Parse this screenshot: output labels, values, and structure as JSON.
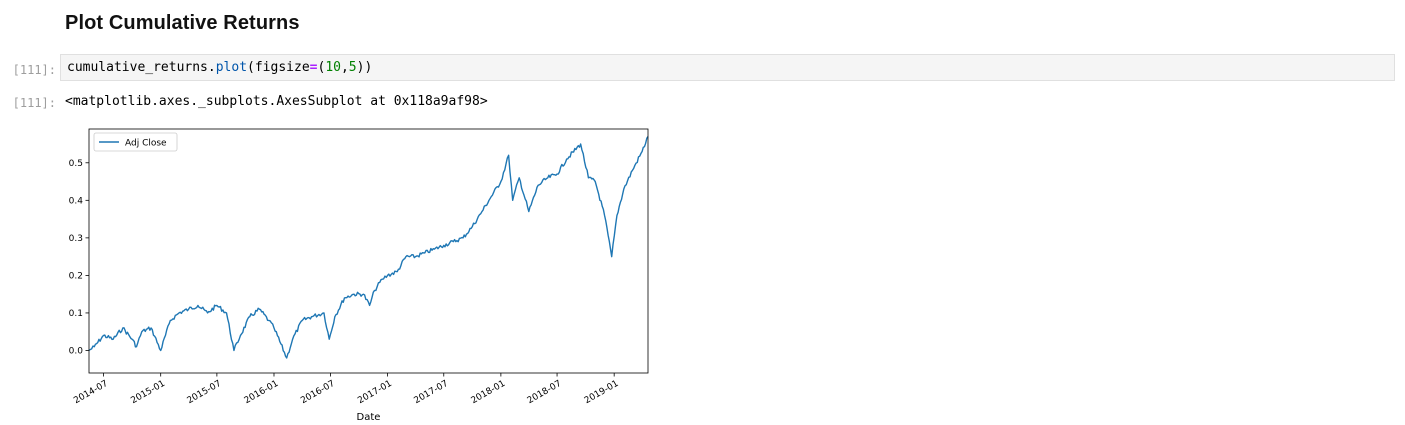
{
  "section": {
    "title": "Plot Cumulative Returns"
  },
  "input_cell": {
    "prompt": "[111]:",
    "code": {
      "obj": "cumulative_returns.",
      "method": "plot",
      "open": "(",
      "kw": "figsize",
      "eq": "=",
      "args_open": "(",
      "num1": "10",
      "comma": ",",
      "num2": "5",
      "close": "))"
    }
  },
  "output_cell": {
    "prompt": "[111]:",
    "text": "<matplotlib.axes._subplots.AxesSubplot at 0x118a9af98>"
  },
  "chart_data": {
    "type": "line",
    "xlabel": "Date",
    "ylabel": "",
    "xlim": [
      "2014-05-15",
      "2019-04-20"
    ],
    "ylim": [
      -0.06,
      0.59
    ],
    "yticks": [
      0.0,
      0.1,
      0.2,
      0.3,
      0.4,
      0.5
    ],
    "ytick_labels": [
      "0.0",
      "0.1",
      "0.2",
      "0.3",
      "0.4",
      "0.5"
    ],
    "xticks": [
      "2014-07-01",
      "2015-01-01",
      "2015-07-01",
      "2016-01-01",
      "2016-07-01",
      "2017-01-01",
      "2017-07-01",
      "2018-01-01",
      "2018-07-01",
      "2019-01-01"
    ],
    "xtick_labels": [
      "2014-07",
      "2015-01",
      "2015-07",
      "2016-01",
      "2016-07",
      "2017-01",
      "2017-07",
      "2018-01",
      "2018-07",
      "2019-01"
    ],
    "grid": false,
    "legend": "top-left",
    "color": "#1f77b4",
    "series": [
      {
        "name": "Adj Close",
        "points": [
          [
            "2014-05-15",
            0.0
          ],
          [
            "2014-06-01",
            0.01
          ],
          [
            "2014-07-01",
            0.04
          ],
          [
            "2014-08-01",
            0.03
          ],
          [
            "2014-09-01",
            0.06
          ],
          [
            "2014-10-01",
            0.03
          ],
          [
            "2014-10-15",
            0.01
          ],
          [
            "2014-11-01",
            0.05
          ],
          [
            "2014-12-01",
            0.06
          ],
          [
            "2015-01-01",
            0.0
          ],
          [
            "2015-02-01",
            0.08
          ],
          [
            "2015-03-01",
            0.1
          ],
          [
            "2015-04-01",
            0.11
          ],
          [
            "2015-05-01",
            0.12
          ],
          [
            "2015-06-01",
            0.1
          ],
          [
            "2015-07-01",
            0.12
          ],
          [
            "2015-08-01",
            0.1
          ],
          [
            "2015-08-25",
            0.0
          ],
          [
            "2015-09-15",
            0.04
          ],
          [
            "2015-10-15",
            0.09
          ],
          [
            "2015-11-15",
            0.11
          ],
          [
            "2015-12-15",
            0.08
          ],
          [
            "2016-01-01",
            0.06
          ],
          [
            "2016-02-11",
            -0.02
          ],
          [
            "2016-03-01",
            0.03
          ],
          [
            "2016-04-01",
            0.08
          ],
          [
            "2016-05-01",
            0.09
          ],
          [
            "2016-06-10",
            0.1
          ],
          [
            "2016-06-27",
            0.03
          ],
          [
            "2016-07-15",
            0.09
          ],
          [
            "2016-08-15",
            0.14
          ],
          [
            "2016-09-15",
            0.15
          ],
          [
            "2016-10-15",
            0.15
          ],
          [
            "2016-11-04",
            0.12
          ],
          [
            "2016-11-20",
            0.16
          ],
          [
            "2016-12-15",
            0.19
          ],
          [
            "2017-01-01",
            0.2
          ],
          [
            "2017-02-01",
            0.21
          ],
          [
            "2017-03-01",
            0.25
          ],
          [
            "2017-04-01",
            0.25
          ],
          [
            "2017-05-01",
            0.26
          ],
          [
            "2017-06-01",
            0.27
          ],
          [
            "2017-07-01",
            0.28
          ],
          [
            "2017-08-01",
            0.29
          ],
          [
            "2017-09-01",
            0.3
          ],
          [
            "2017-10-01",
            0.33
          ],
          [
            "2017-11-01",
            0.37
          ],
          [
            "2017-12-01",
            0.41
          ],
          [
            "2018-01-01",
            0.45
          ],
          [
            "2018-01-26",
            0.52
          ],
          [
            "2018-02-08",
            0.4
          ],
          [
            "2018-03-01",
            0.46
          ],
          [
            "2018-04-01",
            0.37
          ],
          [
            "2018-05-01",
            0.44
          ],
          [
            "2018-06-01",
            0.46
          ],
          [
            "2018-07-01",
            0.47
          ],
          [
            "2018-08-01",
            0.51
          ],
          [
            "2018-09-15",
            0.55
          ],
          [
            "2018-10-10",
            0.46
          ],
          [
            "2018-11-01",
            0.45
          ],
          [
            "2018-12-01",
            0.36
          ],
          [
            "2018-12-24",
            0.25
          ],
          [
            "2019-01-10",
            0.36
          ],
          [
            "2019-02-01",
            0.43
          ],
          [
            "2019-03-01",
            0.48
          ],
          [
            "2019-04-01",
            0.53
          ],
          [
            "2019-04-20",
            0.57
          ]
        ]
      }
    ]
  }
}
